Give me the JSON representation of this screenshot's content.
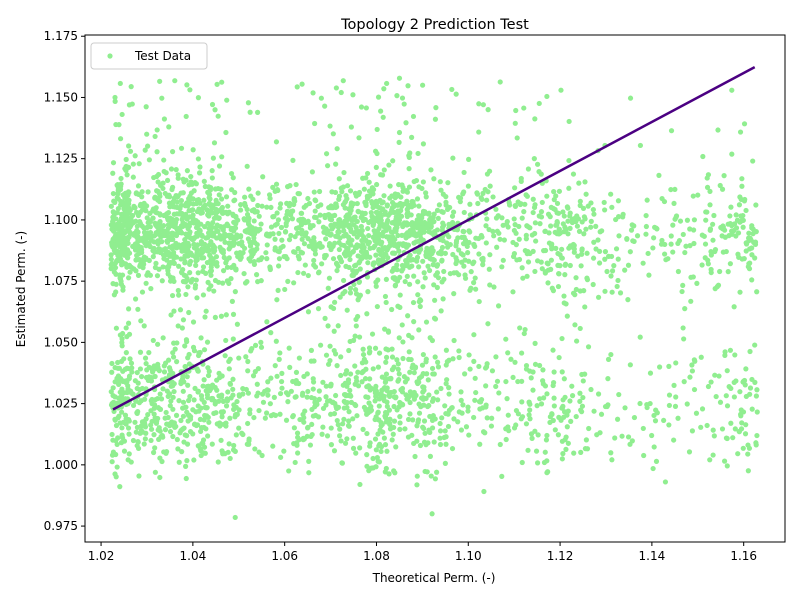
{
  "chart_data": {
    "type": "scatter",
    "title": "Topology 2 Prediction Test",
    "xlabel": "Theoretical Perm. (-)",
    "ylabel": "Estimated Perm. (-)",
    "xlim": [
      1.0165,
      1.169
    ],
    "ylim": [
      0.9685,
      1.1755
    ],
    "x_ticks": [
      "1.02",
      "1.04",
      "1.06",
      "1.08",
      "1.10",
      "1.12",
      "1.14",
      "1.16"
    ],
    "y_ticks": [
      "0.975",
      "1.000",
      "1.025",
      "1.050",
      "1.075",
      "1.100",
      "1.125",
      "1.150",
      "1.175"
    ],
    "grid": false,
    "legend": {
      "position": "top-left",
      "entries": [
        "Test Data"
      ]
    },
    "series": [
      {
        "name": "Test Data",
        "kind": "scatter",
        "color": "#90ee90",
        "approx_point_count": 3800,
        "x": [
          1.0238,
          1.0282,
          1.0316,
          1.0353,
          1.0381,
          1.0419,
          1.0455,
          1.0497,
          1.0535,
          1.0579,
          1.0618,
          1.0663,
          1.0701,
          1.0739,
          1.0771,
          1.0802,
          1.0829,
          1.0851,
          1.0873,
          1.0902,
          1.0935,
          1.0968,
          1.1004,
          1.1047,
          1.1085,
          1.1122,
          1.1159,
          1.1198,
          1.1243,
          1.1286,
          1.1335,
          1.1388,
          1.1452,
          1.1511,
          1.1572,
          1.1624,
          1.0251,
          1.0293,
          1.0338,
          1.0369,
          1.0402,
          1.0443,
          1.0484,
          1.0526,
          1.0561,
          1.0604,
          1.0645,
          1.0688,
          1.0719,
          1.0756,
          1.0786,
          1.0818,
          1.0841,
          1.0862,
          1.0889,
          1.0917,
          1.0951,
          1.0985,
          1.1025,
          1.1066,
          1.1101,
          1.1141,
          1.1176,
          1.1221,
          1.1262,
          1.1311,
          1.1362,
          1.1421,
          1.1483,
          1.1544,
          1.1604,
          1.0268,
          1.0305,
          1.0347,
          1.0391,
          1.0431,
          1.0472,
          1.0509,
          1.0549,
          1.0593,
          1.0632,
          1.0676,
          1.0711,
          1.0746,
          1.0779,
          1.0809,
          1.0835,
          1.0857,
          1.0881,
          1.0909,
          1.0942,
          1.0977,
          1.1014,
          1.1056,
          1.1093,
          1.1131,
          1.1167,
          1.1209,
          1.1251,
          1.1299,
          1.1349,
          1.1405,
          1.1468,
          1.1529,
          1.1592,
          1.0226,
          1.0262,
          1.0311,
          1.0344,
          1.0376,
          1.0412,
          1.0449,
          1.0489,
          1.0528,
          1.0569,
          1.0611,
          1.0654,
          1.0695,
          1.0729,
          1.0763,
          1.0795,
          1.0823,
          1.0846,
          1.0867,
          1.0895,
          1.0925,
          1.0958,
          1.0993,
          1.1036,
          1.1076,
          1.1112,
          1.1151,
          1.1187,
          1.1232,
          1.1274,
          1.1323,
          1.1375,
          1.1437,
          1.1498,
          1.1559,
          1.1613
        ],
        "y": [
          1.0912,
          1.1104,
          1.0231,
          1.0987,
          1.0843,
          1.0152,
          1.1128,
          1.0574,
          1.0065,
          1.0921,
          1.1243,
          1.0338,
          1.0879,
          1.1015,
          1.0472,
          1.0955,
          1.1089,
          1.0643,
          1.0208,
          1.0917,
          1.0764,
          1.1032,
          1.0391,
          1.0858,
          1.0993,
          1.0536,
          1.1187,
          1.0962,
          1.0259,
          1.0824,
          1.0117,
          1.0973,
          1.0416,
          1.1259,
          1.0312,
          1.0489,
          1.0056,
          1.0833,
          1.1412,
          1.0693,
          1.0988,
          1.0271,
          1.0806,
          1.0465,
          1.1052,
          1.0182,
          1.0936,
          1.0598,
          1.1168,
          1.0356,
          1.0884,
          1.1023,
          1.0731,
          1.0147,
          1.0968,
          1.0519,
          1.1095,
          1.0862,
          1.0084,
          1.0649,
          1.1131,
          1.0305,
          1.0947,
          1.1016,
          1.0482,
          1.0771,
          1.0193,
          1.0901,
          1.0358,
          1.1367,
          1.0127,
          1.1473,
          1.0398,
          1.1006,
          1.0622,
          1.0874,
          1.1357,
          1.0124,
          1.0752,
          1.0969,
          1.0436,
          1.1116,
          1.0283,
          1.0998,
          1.0617,
          1.0859,
          1.1071,
          1.0245,
          1.0942,
          1.0583,
          1.1034,
          1.0176,
          1.0892,
          1.0726,
          1.0431,
          1.1208,
          1.0953,
          1.0661,
          1.1047,
          1.0238,
          1.0815,
          1.0073,
          1.0559,
          1.0338,
          1.0705,
          1.0889,
          1.0533,
          1.0267,
          1.1026,
          1.0784,
          1.1249,
          1.0602,
          1.0079,
          1.0851,
          1.0942,
          1.0398,
          1.1067,
          1.0721,
          1.0186,
          1.1112,
          1.0956,
          1.0303,
          1.0889,
          1.1043,
          1.0674,
          1.1168,
          1.0427,
          1.0836,
          1.0131,
          1.0978,
          1.0559,
          1.1227,
          1.0379,
          1.0695,
          1.0219,
          1.0882,
          1.1304,
          1.0163,
          1.0741,
          1.0447,
          1.0288
        ]
      },
      {
        "name": "",
        "kind": "line",
        "color": "#4b0082",
        "x": [
          1.0226,
          1.1624
        ],
        "y": [
          1.0226,
          1.1624
        ]
      }
    ]
  }
}
